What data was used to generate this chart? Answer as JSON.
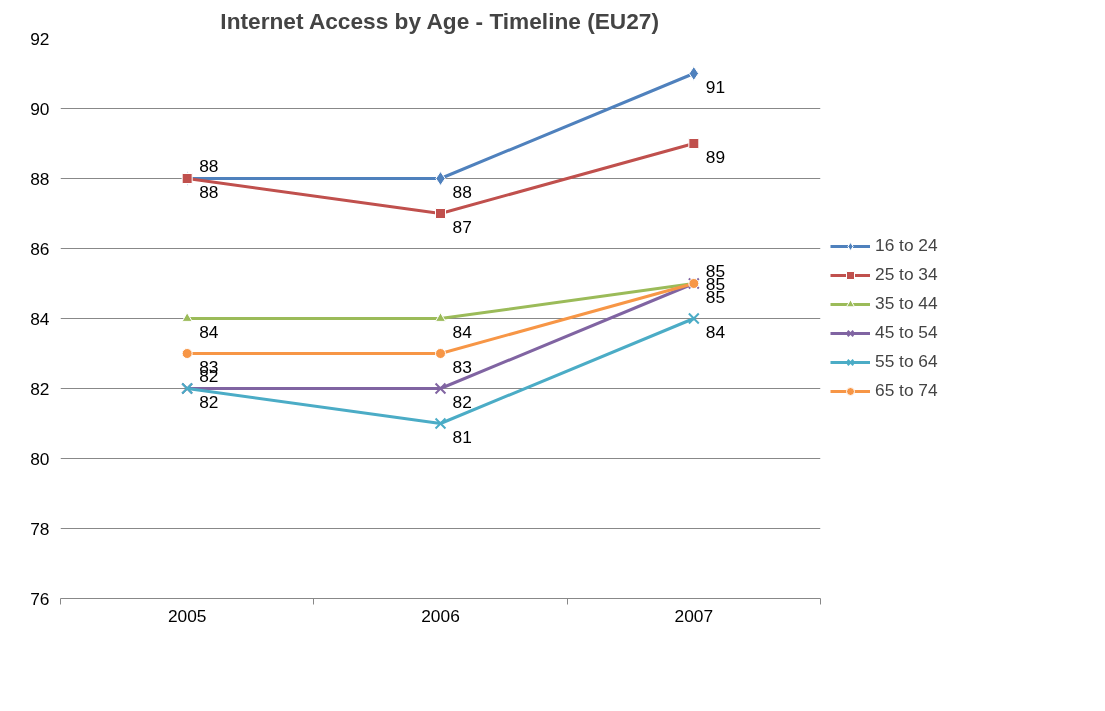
{
  "chart_data": {
    "type": "line",
    "title": "Internet Access by Age - Timeline (EU27)",
    "categories": [
      "2005",
      "2006",
      "2007"
    ],
    "series": [
      {
        "name": "16 to 24",
        "color": "#4f81bd",
        "marker": "diamond",
        "values": [
          88,
          88,
          91
        ]
      },
      {
        "name": "25 to 34",
        "color": "#c0504d",
        "marker": "square",
        "values": [
          88,
          87,
          89
        ]
      },
      {
        "name": "35 to 44",
        "color": "#9bbb59",
        "marker": "triangle",
        "values": [
          84,
          84,
          85
        ]
      },
      {
        "name": "45 to 54",
        "color": "#8064a2",
        "marker": "cross",
        "values": [
          82,
          82,
          85
        ]
      },
      {
        "name": "55 to 64",
        "color": "#4bacc6",
        "marker": "cross",
        "values": [
          82,
          81,
          84
        ]
      },
      {
        "name": "65 to 74",
        "color": "#f79646",
        "marker": "circle",
        "values": [
          83,
          83,
          85
        ]
      }
    ],
    "ylim": [
      76,
      92
    ],
    "yticks": [
      76,
      78,
      80,
      82,
      84,
      86,
      88,
      90,
      92
    ],
    "grid": "y",
    "legend": "right",
    "data_labels": true,
    "line_style": "solid"
  }
}
